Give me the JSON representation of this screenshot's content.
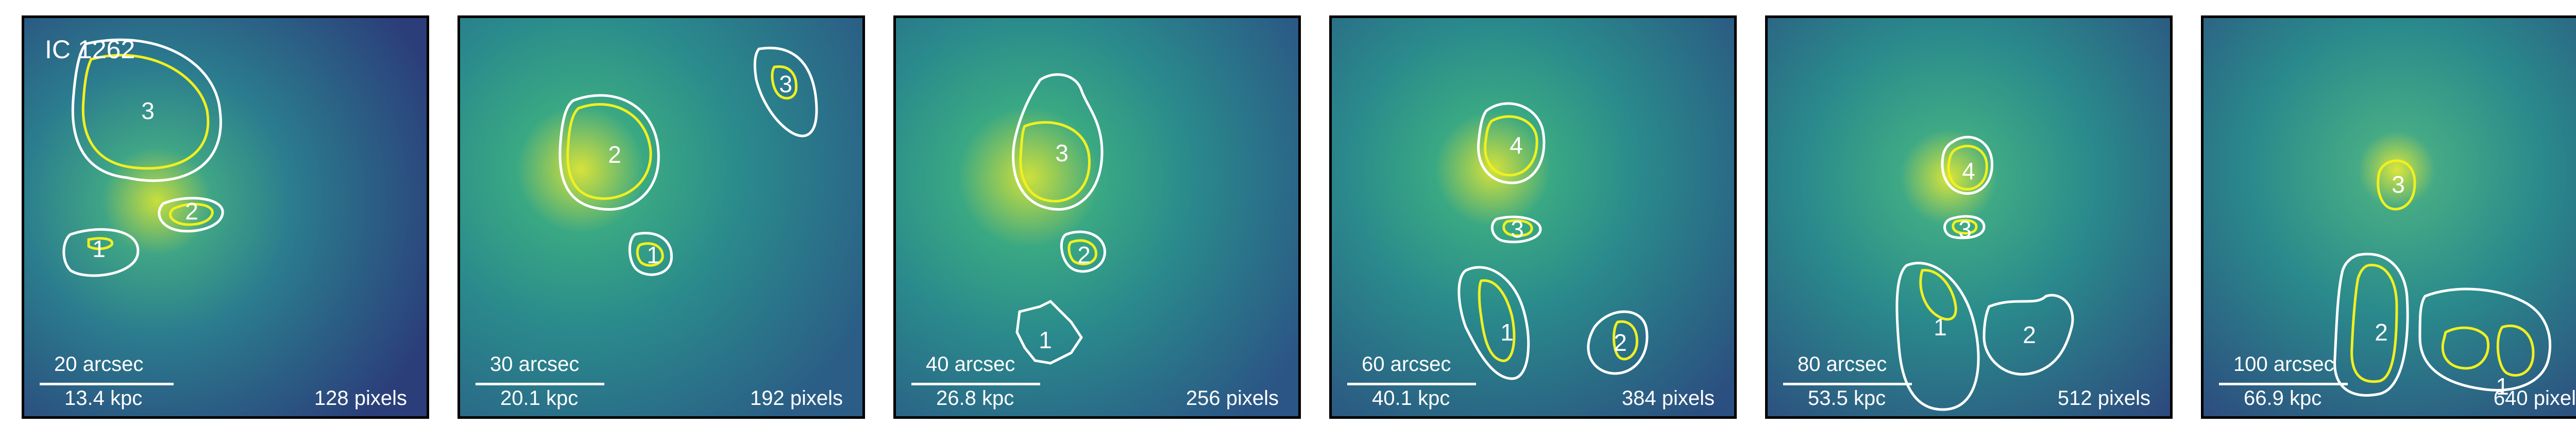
{
  "panels": [
    {
      "title": "IC 1262",
      "arcsec": "20 arcsec",
      "kpc": "13.4 kpc",
      "pixels": "128 pixels",
      "region_labels": [
        "3",
        "2",
        "1"
      ]
    },
    {
      "title": "",
      "arcsec": "30 arcsec",
      "kpc": "20.1 kpc",
      "pixels": "192 pixels",
      "region_labels": [
        "2",
        "1",
        "3"
      ]
    },
    {
      "title": "",
      "arcsec": "40 arcsec",
      "kpc": "26.8 kpc",
      "pixels": "256 pixels",
      "region_labels": [
        "3",
        "2",
        "1"
      ]
    },
    {
      "title": "",
      "arcsec": "60 arcsec",
      "kpc": "40.1 kpc",
      "pixels": "384 pixels",
      "region_labels": [
        "4",
        "3",
        "1",
        "2"
      ]
    },
    {
      "title": "",
      "arcsec": "80 arcsec",
      "kpc": "53.5 kpc",
      "pixels": "512 pixels",
      "region_labels": [
        "4",
        "3",
        "1",
        "2"
      ]
    },
    {
      "title": "",
      "arcsec": "100 arcsec",
      "kpc": "66.9 kpc",
      "pixels": "640 pixels",
      "region_labels": [
        "3",
        "2",
        "1"
      ]
    }
  ],
  "colors": {
    "background_dark": "#2a2f6b",
    "background_mid": "#1f8f8c",
    "core_glow": "#d8e83a",
    "contour_white": "#ffffff",
    "contour_yellow": "#f0f020"
  }
}
